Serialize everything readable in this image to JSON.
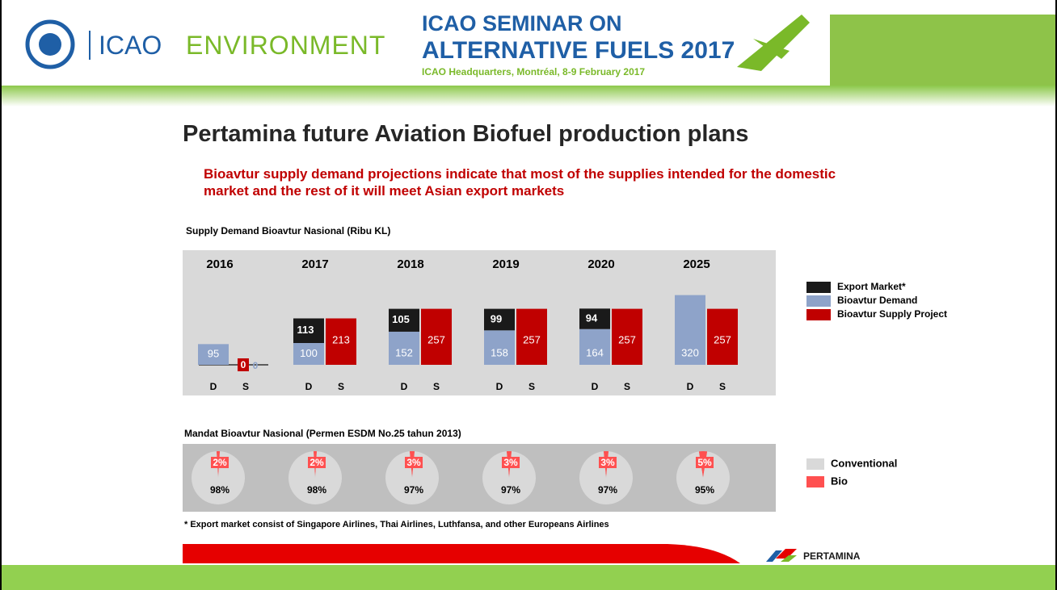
{
  "header": {
    "org": "ICAO",
    "section": "ENVIRONMENT",
    "seminar_line1": "ICAO SEMINAR ON",
    "seminar_line2": "ALTERNATIVE FUELS 2017",
    "seminar_sub": "ICAO Headquarters, Montréal, 8-9 February 2017"
  },
  "slide": {
    "title": "Pertamina future Aviation Biofuel production plans",
    "subtitle": "Bioavtur supply demand projections indicate that most of the supplies intended for the domestic market and the rest of it will meet Asian export markets",
    "footnote": "* Export market consist of Singapore Airlines, Thai Airlines, Luthfansa, and other Europeans Airlines",
    "brand": "PERTAMINA"
  },
  "chart_data": [
    {
      "type": "bar",
      "title": "Supply Demand Bioavtur Nasional (Ribu KL)",
      "categories": [
        "2016",
        "2017",
        "2018",
        "2019",
        "2020",
        "2025"
      ],
      "bar_labels": [
        "D",
        "S"
      ],
      "series": [
        {
          "name": "Export Market*",
          "color": "#1a1a1a",
          "values": [
            0,
            113,
            105,
            99,
            94,
            null
          ]
        },
        {
          "name": "Bioavtur Demand",
          "color": "#8ea3c9",
          "values": [
            95,
            100,
            152,
            158,
            164,
            320
          ]
        },
        {
          "name": "Bioavtur Supply Project",
          "color": "#c00000",
          "values": [
            0,
            213,
            257,
            257,
            257,
            257
          ]
        }
      ]
    },
    {
      "type": "pie",
      "title": "Mandat Bioavtur Nasional (Permen ESDM No.25 tahun 2013)",
      "categories": [
        "2016",
        "2017",
        "2018",
        "2019",
        "2020",
        "2025"
      ],
      "series": [
        {
          "name": "Conventional",
          "color": "#d9d9d9",
          "values": [
            98,
            98,
            97,
            97,
            97,
            95
          ],
          "value_labels": [
            "98%",
            "98%",
            "97%",
            "97%",
            "97%",
            "95%"
          ]
        },
        {
          "name": "Bio",
          "color": "#ff5050",
          "values": [
            2,
            2,
            3,
            3,
            3,
            5
          ],
          "value_labels": [
            "2%",
            "2%",
            "3%",
            "3%",
            "3%",
            "5%"
          ]
        }
      ]
    }
  ]
}
